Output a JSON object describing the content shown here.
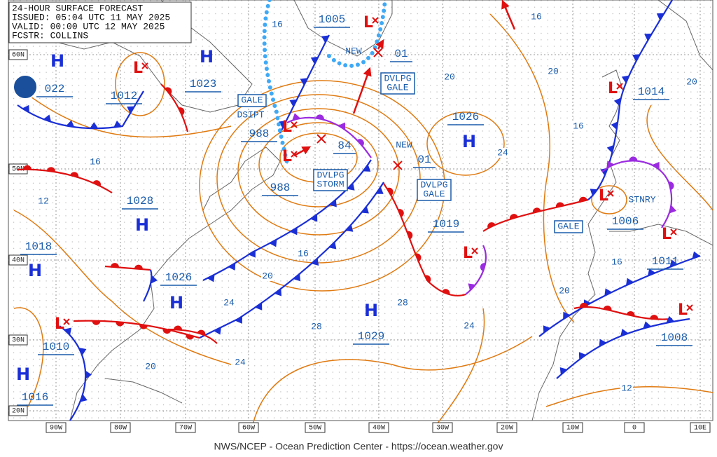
{
  "header": {
    "title": "24-HOUR SURFACE FORECAST",
    "issued": "ISSUED: 05:04 UTC 11 MAY 2025",
    "valid": "VALID:  00:00 UTC 12 MAY 2025",
    "forecaster": "FCSTR:  COLLINS"
  },
  "footer": "NWS/NCEP - Ocean Prediction Center - https://ocean.weather.gov",
  "latitude_labels": [
    "60N",
    "50N",
    "40N",
    "30N",
    "20N"
  ],
  "longitude_labels": [
    "90W",
    "80W",
    "70W",
    "60W",
    "50W",
    "40W",
    "30W",
    "20W",
    "10W",
    "0",
    "10E"
  ],
  "centers": [
    {
      "symbol": "H",
      "pressure": "022"
    },
    {
      "symbol": "L",
      "pressure": "1012"
    },
    {
      "symbol": "H",
      "pressure": "1023"
    },
    {
      "symbol": "L",
      "pressure": "988"
    },
    {
      "symbol": "L",
      "pressure": "988"
    },
    {
      "symbol": "L",
      "pressure": "1005"
    },
    {
      "symbol": "H",
      "pressure": "1026"
    },
    {
      "symbol": "L",
      "pressure": "1019"
    },
    {
      "symbol": "H",
      "pressure": "1028"
    },
    {
      "symbol": "H",
      "pressure": "1018"
    },
    {
      "symbol": "H",
      "pressure": "1026"
    },
    {
      "symbol": "H",
      "pressure": "1029"
    },
    {
      "symbol": "L",
      "pressure": "1010"
    },
    {
      "symbol": "H",
      "pressure": "1016"
    },
    {
      "symbol": "L",
      "pressure": "1014"
    },
    {
      "symbol": "L",
      "pressure": "1006"
    },
    {
      "symbol": "L",
      "pressure": "1011"
    },
    {
      "symbol": "L",
      "pressure": "1008"
    }
  ],
  "new_lows": [
    {
      "pressure": "01"
    },
    {
      "pressure": "84"
    },
    {
      "pressure": "01"
    }
  ],
  "annotations": [
    [
      "GALE"
    ],
    [
      "DSIPT"
    ],
    [
      "NEW"
    ],
    [
      "DVLPG",
      "GALE"
    ],
    [
      "DVLPG",
      "STORM"
    ],
    [
      "NEW"
    ],
    [
      "DVLPG",
      "GALE"
    ],
    [
      "STNRY"
    ],
    [
      "GALE"
    ]
  ],
  "isobar_labels": [
    "16",
    "16",
    "20",
    "20",
    "20",
    "16",
    "12",
    "24",
    "16",
    "16",
    "20",
    "24",
    "28",
    "28",
    "24",
    "20",
    "16",
    "24",
    "20",
    "12"
  ]
}
